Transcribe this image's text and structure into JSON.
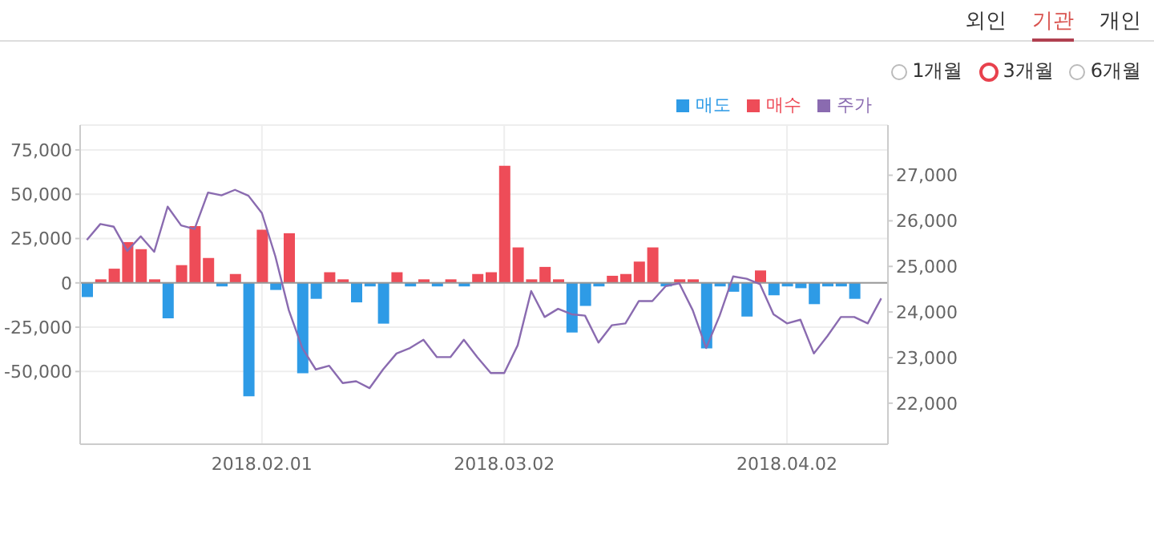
{
  "chart_data": {
    "type": "bar",
    "stacked": true,
    "categories": [
      null,
      null,
      null,
      null,
      null,
      null,
      null,
      null,
      null,
      null,
      null,
      null,
      null,
      "2018.02.01",
      null,
      null,
      null,
      null,
      null,
      null,
      null,
      null,
      null,
      null,
      null,
      null,
      null,
      null,
      null,
      null,
      null,
      "2018.03.02",
      null,
      null,
      null,
      null,
      null,
      null,
      null,
      null,
      null,
      null,
      null,
      null,
      null,
      null,
      null,
      null,
      null,
      null,
      null,
      null,
      "2018.04.02",
      null,
      null,
      null,
      null,
      null,
      null,
      null
    ],
    "series": [
      {
        "name": "매도",
        "color": "#2e9be6",
        "values": [
          -8000,
          null,
          null,
          null,
          null,
          null,
          -20000,
          null,
          null,
          null,
          -2000,
          null,
          -64000,
          null,
          -4000,
          null,
          -51000,
          -9000,
          null,
          null,
          -11000,
          -2000,
          -23000,
          null,
          -2000,
          null,
          -2000,
          null,
          -2000,
          null,
          null,
          null,
          null,
          null,
          null,
          null,
          -28000,
          -13000,
          -2000,
          null,
          null,
          null,
          null,
          -2000,
          null,
          null,
          -37000,
          -2000,
          -5000,
          -19000,
          null,
          -7000,
          -2000,
          -3000,
          -12000,
          -2000,
          -2000,
          -9000,
          null,
          null
        ]
      },
      {
        "name": "매수",
        "color": "#ee4c58",
        "values": [
          null,
          2000,
          8000,
          23000,
          19000,
          2000,
          null,
          10000,
          32000,
          14000,
          null,
          5000,
          null,
          30000,
          null,
          28000,
          null,
          null,
          6000,
          2000,
          null,
          null,
          null,
          6000,
          null,
          2000,
          null,
          2000,
          null,
          5000,
          6000,
          66000,
          20000,
          2000,
          9000,
          2000,
          null,
          null,
          null,
          4000,
          5000,
          12000,
          20000,
          null,
          2000,
          2000,
          null,
          null,
          null,
          null,
          7000,
          null,
          null,
          null,
          null,
          null,
          null,
          null,
          null,
          null
        ]
      },
      {
        "name": "주가",
        "type": "line",
        "axis": "y2",
        "color": "#8a6bb0",
        "values": [
          25580,
          25930,
          25870,
          25340,
          25660,
          25320,
          26310,
          25900,
          25820,
          26620,
          26560,
          26680,
          26550,
          26170,
          25220,
          24040,
          23210,
          22740,
          22820,
          22440,
          22480,
          22330,
          22740,
          23090,
          23210,
          23390,
          23010,
          23010,
          23390,
          23010,
          22660,
          22660,
          23270,
          24460,
          23890,
          24070,
          23950,
          23920,
          23330,
          23710,
          23750,
          24240,
          24240,
          24570,
          24630,
          24040,
          23210,
          23920,
          24780,
          24730,
          24610,
          23950,
          23750,
          23830,
          23090,
          23470,
          23890,
          23890,
          23750,
          24300
        ]
      }
    ],
    "ylim": [
      -91000,
      89000
    ],
    "yticks": [
      {
        "value": -50000,
        "label": "-50,000"
      },
      {
        "value": -25000,
        "label": "-25,000"
      },
      0,
      {
        "value": 25000,
        "label": "25,000"
      },
      {
        "value": 50000,
        "label": "50,000"
      },
      {
        "value": 75000,
        "label": "75,000"
      }
    ],
    "y2lim": [
      21100,
      28100
    ],
    "y2ticks": [
      {
        "value": 22000,
        "label": "22,000"
      },
      {
        "value": 23000,
        "label": "23,000"
      },
      {
        "value": 24000,
        "label": "24,000"
      },
      {
        "value": 25000,
        "label": "25,000"
      },
      {
        "value": 26000,
        "label": "26,000"
      },
      {
        "value": 27000,
        "label": "27,000"
      }
    ],
    "grid": true,
    "legend": "top right",
    "marker": "none",
    "line_style": "solid",
    "annotations": [
      "외인",
      "기관",
      "개인",
      "1개월",
      "3개월",
      "6개월"
    ]
  }
}
